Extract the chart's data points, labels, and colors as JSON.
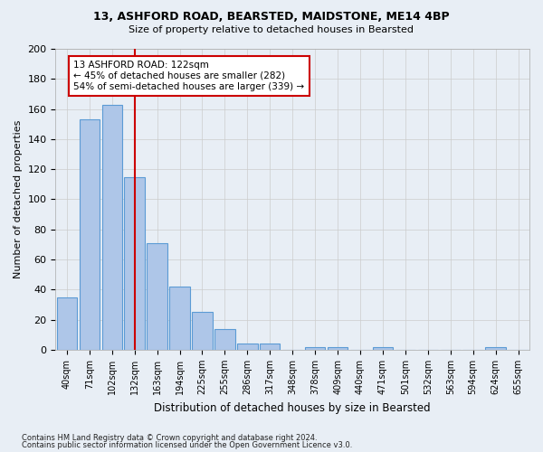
{
  "title1": "13, ASHFORD ROAD, BEARSTED, MAIDSTONE, ME14 4BP",
  "title2": "Size of property relative to detached houses in Bearsted",
  "xlabel": "Distribution of detached houses by size in Bearsted",
  "ylabel": "Number of detached properties",
  "categories": [
    "40sqm",
    "71sqm",
    "102sqm",
    "132sqm",
    "163sqm",
    "194sqm",
    "225sqm",
    "255sqm",
    "286sqm",
    "317sqm",
    "348sqm",
    "378sqm",
    "409sqm",
    "440sqm",
    "471sqm",
    "501sqm",
    "532sqm",
    "563sqm",
    "594sqm",
    "624sqm",
    "655sqm"
  ],
  "values": [
    35,
    153,
    163,
    115,
    71,
    42,
    25,
    14,
    4,
    4,
    0,
    2,
    2,
    0,
    2,
    0,
    0,
    0,
    0,
    2,
    0
  ],
  "bar_color": "#aec6e8",
  "bar_edge_color": "#5b9bd5",
  "bar_edge_width": 0.8,
  "vline_index": 3.0,
  "vline_color": "#cc0000",
  "annotation_text": "13 ASHFORD ROAD: 122sqm\n← 45% of detached houses are smaller (282)\n54% of semi-detached houses are larger (339) →",
  "annotation_box_color": "#ffffff",
  "annotation_box_edge": "#cc0000",
  "ylim": [
    0,
    200
  ],
  "yticks": [
    0,
    20,
    40,
    60,
    80,
    100,
    120,
    140,
    160,
    180,
    200
  ],
  "grid_color": "#cccccc",
  "bg_color": "#e8eef5",
  "plot_bg_color": "#e8eef5",
  "footnote1": "Contains HM Land Registry data © Crown copyright and database right 2024.",
  "footnote2": "Contains public sector information licensed under the Open Government Licence v3.0."
}
